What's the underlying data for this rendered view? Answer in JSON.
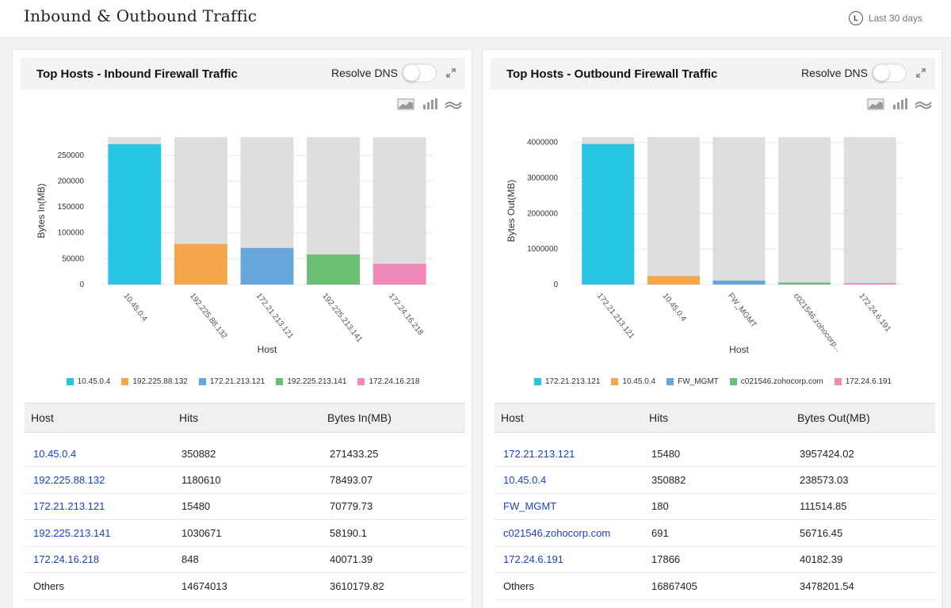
{
  "page": {
    "title": "Inbound & Outbound Traffic",
    "range_icon": "clock-icon",
    "range_label": "Last 30 days"
  },
  "colors": {
    "cyan": "#26c6e2",
    "orange": "#f6a54a",
    "blue": "#66a6dc",
    "green": "#6bbf73",
    "pink": "#f089b8",
    "track": "#dedede",
    "link": "#1a3fcf"
  },
  "inbound": {
    "title": "Top Hosts - Inbound Firewall Traffic",
    "resolve_dns_label": "Resolve DNS",
    "chart_data": {
      "type": "bar",
      "categories": [
        "10.45.0.4",
        "192.225.88.132",
        "172.21.213.121",
        "192.225.213.141",
        "172.24.16.218"
      ],
      "values": [
        271433.25,
        78493.07,
        70779.73,
        58190.1,
        40071.39
      ],
      "colors": [
        "#26c6e2",
        "#f6a54a",
        "#66a6dc",
        "#6bbf73",
        "#f089b8"
      ],
      "xlabel": "Host",
      "ylabel": "Bytes In(MB)",
      "yticks": [
        0,
        50000,
        100000,
        150000,
        200000,
        250000
      ],
      "ylim": [
        0,
        285000
      ]
    },
    "table": {
      "headers": [
        "Host",
        "Hits",
        "Bytes In(MB)"
      ],
      "rows": [
        [
          "10.45.0.4",
          "350882",
          "271433.25"
        ],
        [
          "192.225.88.132",
          "1180610",
          "78493.07"
        ],
        [
          "172.21.213.121",
          "15480",
          "70779.73"
        ],
        [
          "192.225.213.141",
          "1030671",
          "58190.1"
        ],
        [
          "172.24.16.218",
          "848",
          "40071.39"
        ],
        [
          "Others",
          "14674013",
          "3610179.82"
        ]
      ]
    }
  },
  "outbound": {
    "title": "Top Hosts - Outbound Firewall Traffic",
    "resolve_dns_label": "Resolve DNS",
    "chart_data": {
      "type": "bar",
      "categories": [
        "172.21.213.121",
        "10.45.0.4",
        "FW_MGMT",
        "c021546.zohocorp...",
        "172.24.6.191"
      ],
      "legend": [
        "172.21.213.121",
        "10.45.0.4",
        "FW_MGMT",
        "c021546.zohocorp.com",
        "172.24.6.191"
      ],
      "values": [
        3957424.02,
        238573.03,
        111514.85,
        56716.45,
        40182.39
      ],
      "colors": [
        "#26c6e2",
        "#f6a54a",
        "#66a6dc",
        "#6bbf73",
        "#f089b8"
      ],
      "xlabel": "Host",
      "ylabel": "Bytes Out(MB)",
      "yticks": [
        0,
        1000000,
        2000000,
        3000000,
        4000000
      ],
      "ylim": [
        0,
        4150000
      ]
    },
    "table": {
      "headers": [
        "Host",
        "Hits",
        "Bytes Out(MB)"
      ],
      "rows": [
        [
          "172.21.213.121",
          "15480",
          "3957424.02"
        ],
        [
          "10.45.0.4",
          "350882",
          "238573.03"
        ],
        [
          "FW_MGMT",
          "180",
          "111514.85"
        ],
        [
          "c021546.zohocorp.com",
          "691",
          "56716.45"
        ],
        [
          "172.24.6.191",
          "17866",
          "40182.39"
        ],
        [
          "Others",
          "16867405",
          "3478201.54"
        ]
      ]
    }
  }
}
